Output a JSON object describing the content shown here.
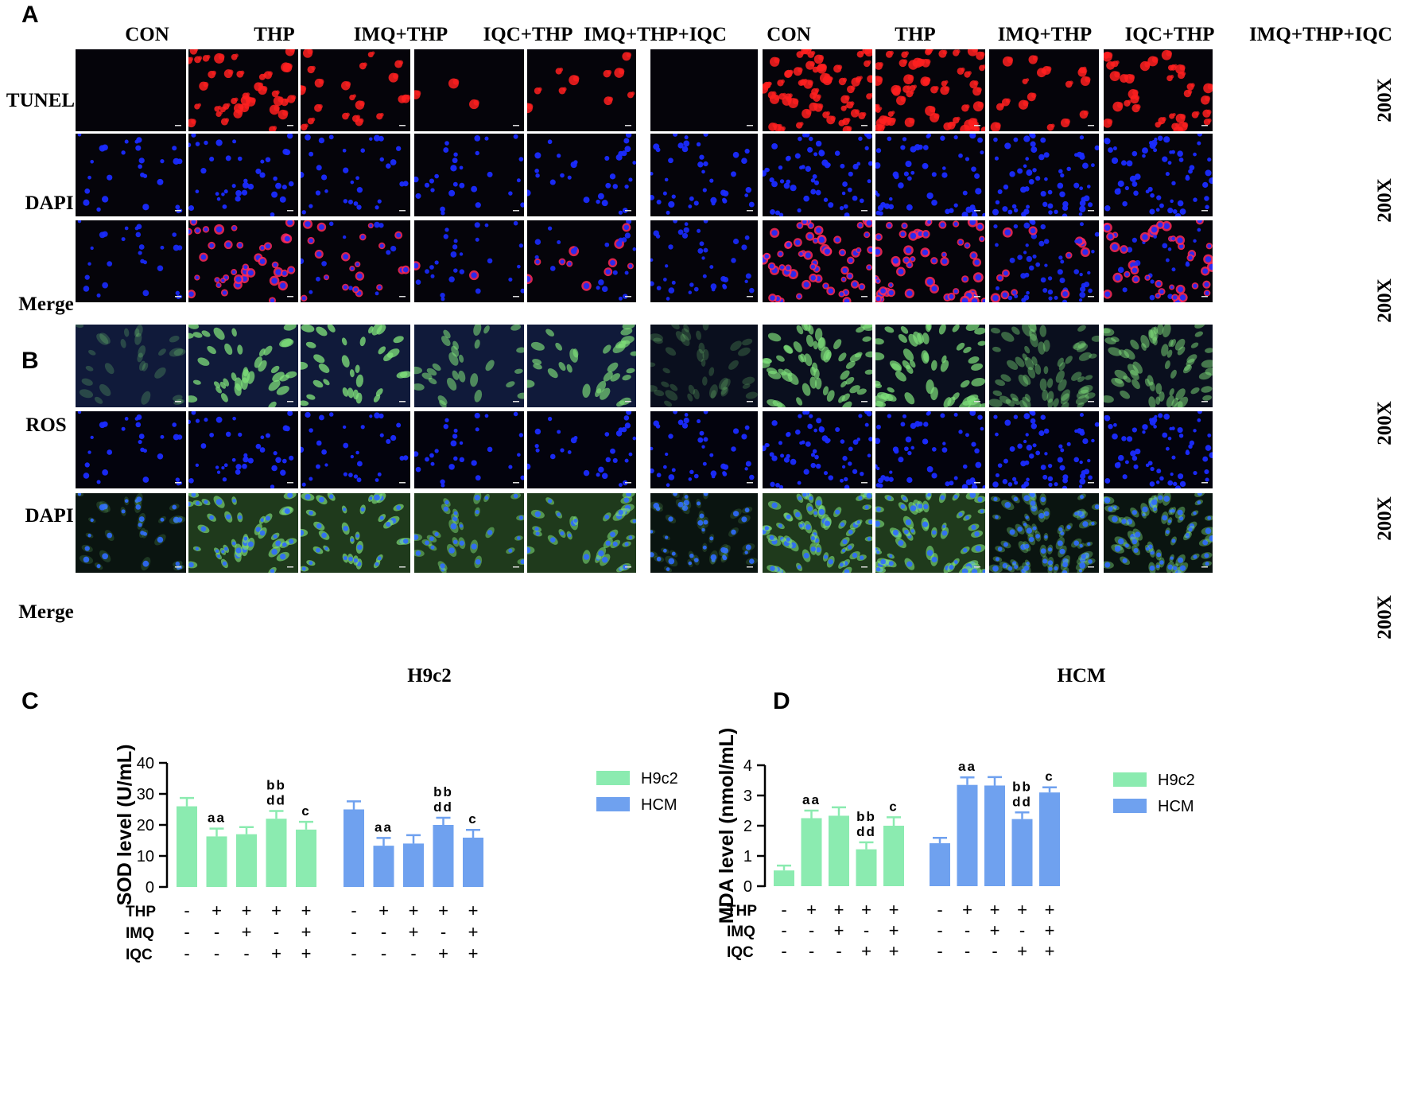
{
  "panels": {
    "A": "A",
    "B": "B",
    "C": "C",
    "D": "D"
  },
  "groups": [
    "CON",
    "THP",
    "IMQ+THP",
    "IQC+THP",
    "IMQ+THP+IQC"
  ],
  "row_labels_A": [
    "TUNEL",
    "DAPI",
    "Merge"
  ],
  "row_labels_B": [
    "ROS",
    "DAPI",
    "Merge"
  ],
  "magnification": "200X",
  "cell_lines": [
    "H9c2",
    "HCM"
  ],
  "colors": {
    "h9c2": "#8BEBB0",
    "hcm": "#6FA1EF",
    "tunel": "#FF2020",
    "dapi": "#1A2BFF",
    "ros": "#7FE07A"
  },
  "chart_data": [
    {
      "type": "bar",
      "id": "C",
      "ylabel": "SOD level (U/mL)",
      "ylim": [
        0,
        40
      ],
      "yticks": [
        0,
        10,
        20,
        30,
        40
      ],
      "series": [
        {
          "name": "H9c2",
          "values": [
            26.0,
            16.3,
            17.0,
            22.0,
            18.5
          ],
          "errors": [
            2.7,
            2.5,
            2.3,
            2.5,
            2.5
          ],
          "annotations": [
            "",
            "aa",
            "",
            "bb\ndd",
            "c"
          ]
        },
        {
          "name": "HCM",
          "values": [
            25.0,
            13.3,
            14.0,
            20.0,
            15.9
          ],
          "errors": [
            2.6,
            2.5,
            2.7,
            2.3,
            2.5
          ],
          "annotations": [
            "",
            "aa",
            "",
            "bb\ndd",
            "c"
          ]
        }
      ],
      "treatment_rows": [
        {
          "label": "THP",
          "signs": [
            "-",
            "+",
            "+",
            "+",
            "+"
          ]
        },
        {
          "label": "IMQ",
          "signs": [
            "-",
            "-",
            "+",
            "-",
            "+"
          ]
        },
        {
          "label": "IQC",
          "signs": [
            "-",
            "-",
            "-",
            "+",
            "+"
          ]
        }
      ],
      "legend": "top-right"
    },
    {
      "type": "bar",
      "id": "D",
      "ylabel": "MDA level (nmol/mL)",
      "ylim": [
        0,
        4
      ],
      "yticks": [
        0,
        1,
        2,
        3,
        4
      ],
      "series": [
        {
          "name": "H9c2",
          "values": [
            0.52,
            2.25,
            2.33,
            1.22,
            2.0
          ],
          "errors": [
            0.16,
            0.25,
            0.28,
            0.23,
            0.28
          ],
          "annotations": [
            "",
            "aa",
            "",
            "bb\ndd",
            "c"
          ]
        },
        {
          "name": "HCM",
          "values": [
            1.42,
            3.35,
            3.33,
            2.22,
            3.1
          ],
          "errors": [
            0.18,
            0.25,
            0.28,
            0.22,
            0.17
          ],
          "annotations": [
            "",
            "aa",
            "",
            "bb\ndd",
            "c"
          ]
        }
      ],
      "treatment_rows": [
        {
          "label": "THP",
          "signs": [
            "-",
            "+",
            "+",
            "+",
            "+"
          ]
        },
        {
          "label": "IMQ",
          "signs": [
            "-",
            "-",
            "+",
            "-",
            "+"
          ]
        },
        {
          "label": "IQC",
          "signs": [
            "-",
            "-",
            "-",
            "+",
            "+"
          ]
        }
      ],
      "legend": "top-right"
    }
  ]
}
